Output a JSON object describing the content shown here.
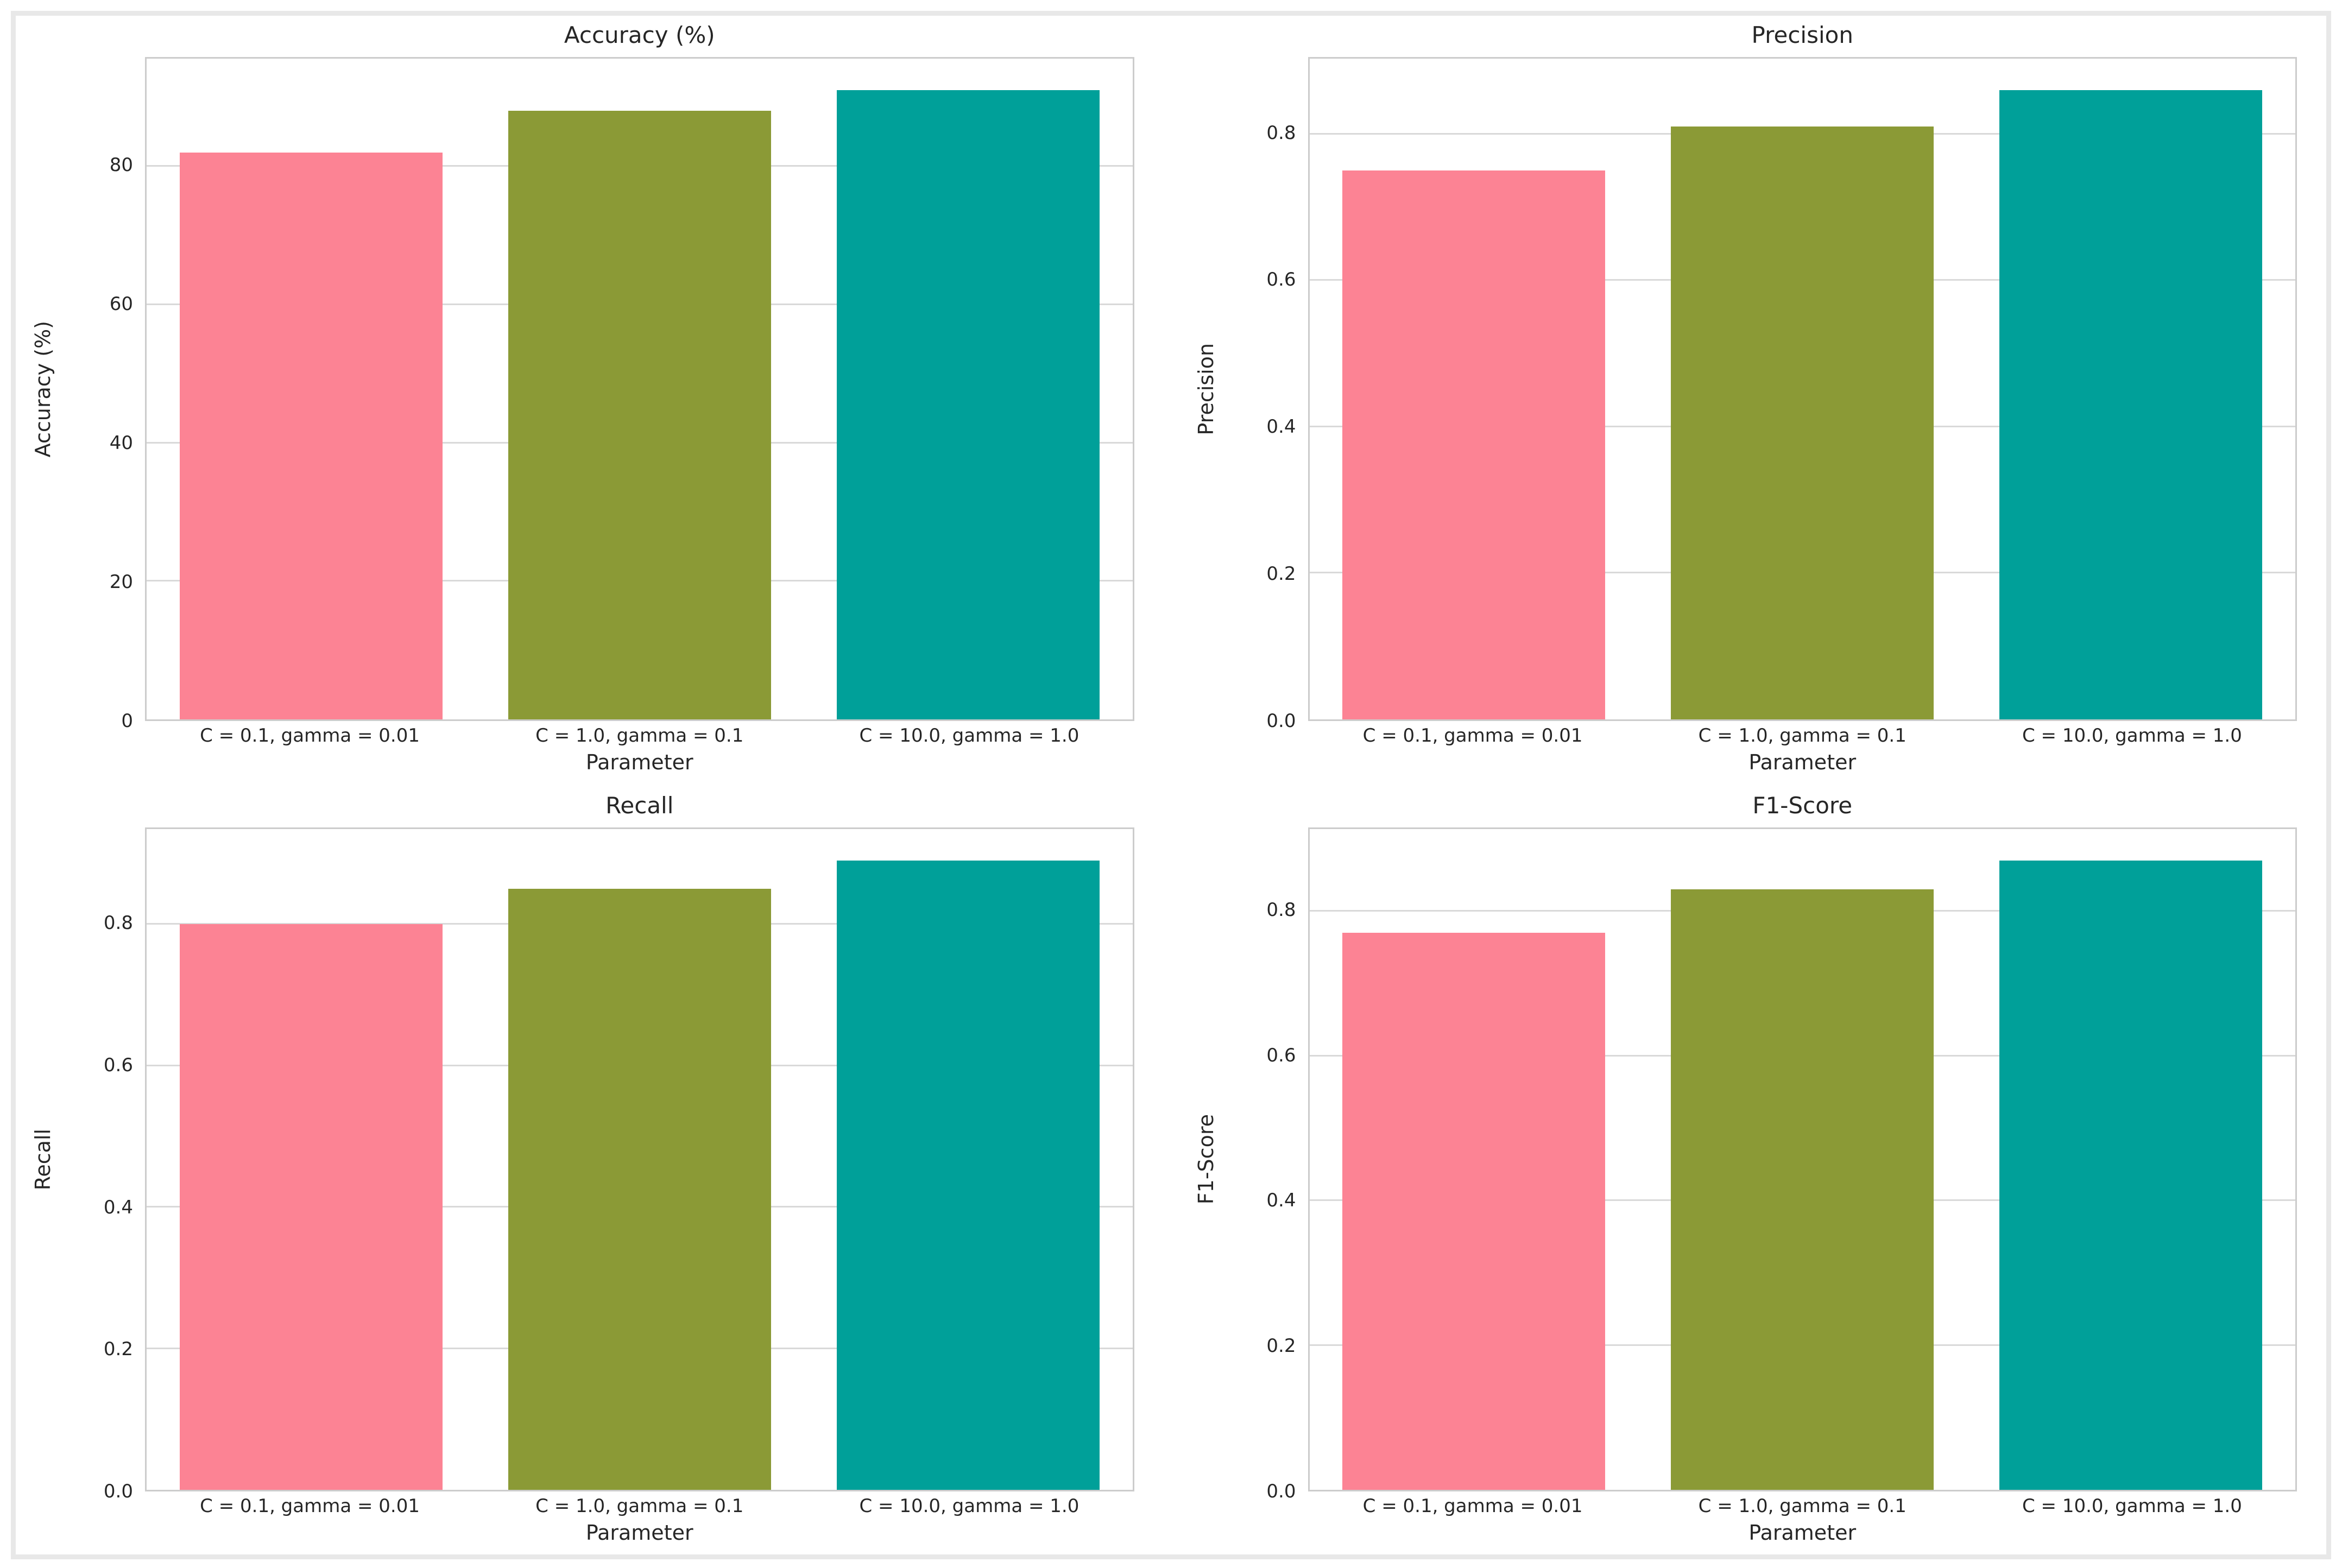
{
  "figure": {
    "background": "#ffffff",
    "frame_color": "#e8e8e8",
    "spine_color": "#cccccc",
    "grid_color": "#d9d9d9",
    "text_color": "#262626"
  },
  "chart_data": [
    {
      "type": "bar",
      "title": "Accuracy (%)",
      "xlabel": "Parameter",
      "ylabel": "Accuracy (%)",
      "categories": [
        "C = 0.1, gamma = 0.01",
        "C = 1.0, gamma = 0.1",
        "C = 10.0, gamma = 1.0"
      ],
      "values": [
        82,
        88,
        91
      ],
      "bar_colors": [
        "#fc8394",
        "#8b9a36",
        "#00a099"
      ],
      "yticks": [
        0,
        20,
        40,
        60,
        80
      ],
      "ytick_labels": [
        "0",
        "20",
        "40",
        "60",
        "80"
      ],
      "ylim": [
        0,
        95.55
      ],
      "grid": true,
      "legend": null
    },
    {
      "type": "bar",
      "title": "Precision",
      "xlabel": "Parameter",
      "ylabel": "Precision",
      "categories": [
        "C = 0.1, gamma = 0.01",
        "C = 1.0, gamma = 0.1",
        "C = 10.0, gamma = 1.0"
      ],
      "values": [
        0.75,
        0.81,
        0.86
      ],
      "bar_colors": [
        "#fc8394",
        "#8b9a36",
        "#00a099"
      ],
      "yticks": [
        0,
        0.2,
        0.4,
        0.6,
        0.8
      ],
      "ytick_labels": [
        "0.0",
        "0.2",
        "0.4",
        "0.6",
        "0.8"
      ],
      "ylim": [
        0,
        0.903
      ],
      "grid": true,
      "legend": null
    },
    {
      "type": "bar",
      "title": "Recall",
      "xlabel": "Parameter",
      "ylabel": "Recall",
      "categories": [
        "C = 0.1, gamma = 0.01",
        "C = 1.0, gamma = 0.1",
        "C = 10.0, gamma = 1.0"
      ],
      "values": [
        0.8,
        0.85,
        0.89
      ],
      "bar_colors": [
        "#fc8394",
        "#8b9a36",
        "#00a099"
      ],
      "yticks": [
        0,
        0.2,
        0.4,
        0.6,
        0.8
      ],
      "ytick_labels": [
        "0.0",
        "0.2",
        "0.4",
        "0.6",
        "0.8"
      ],
      "ylim": [
        0,
        0.9345
      ],
      "grid": true,
      "legend": null
    },
    {
      "type": "bar",
      "title": "F1-Score",
      "xlabel": "Parameter",
      "ylabel": "F1-Score",
      "categories": [
        "C = 0.1, gamma = 0.01",
        "C = 1.0, gamma = 0.1",
        "C = 10.0, gamma = 1.0"
      ],
      "values": [
        0.77,
        0.83,
        0.87
      ],
      "bar_colors": [
        "#fc8394",
        "#8b9a36",
        "#00a099"
      ],
      "yticks": [
        0,
        0.2,
        0.4,
        0.6,
        0.8
      ],
      "ytick_labels": [
        "0.0",
        "0.2",
        "0.4",
        "0.6",
        "0.8"
      ],
      "ylim": [
        0,
        0.9135
      ],
      "grid": true,
      "legend": null
    }
  ]
}
